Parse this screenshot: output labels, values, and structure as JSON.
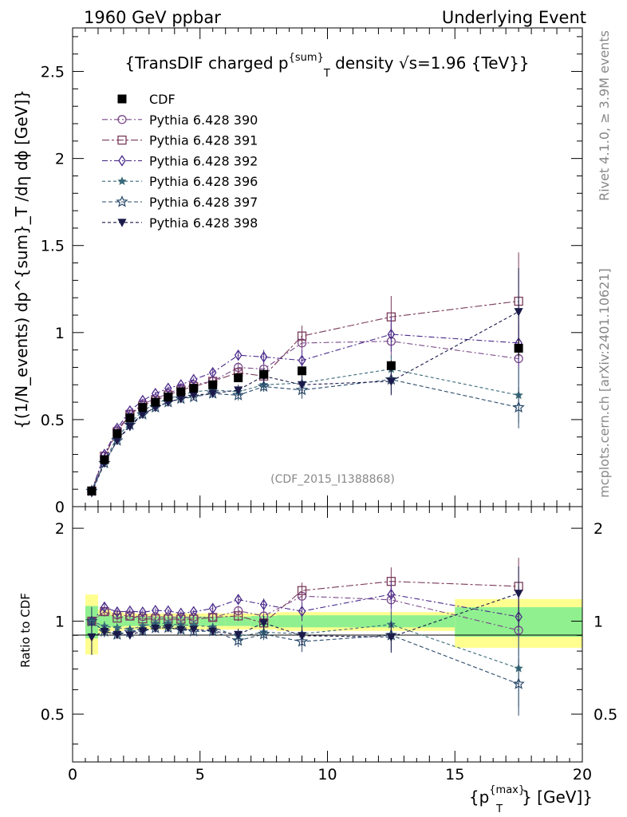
{
  "header": {
    "left": "1960 GeV ppbar",
    "right": "Underlying Event"
  },
  "side": {
    "rivet": "Rivet 4.1.0, ≥ 3.9M events",
    "mcplots": "mcplots.cern.ch [arXiv:2401.10621]"
  },
  "watermark": "(CDF_2015_I1388868)",
  "colors": {
    "band_inner": "#90f090",
    "band_outer": "#ffff90",
    "cdf": "#000000"
  },
  "chart_data": [
    {
      "type": "scatter",
      "panel": "main",
      "title_parts": {
        "pre": "{TransDIF charged p",
        "sup": "{sum}",
        "sub": "T",
        "post": " density √s=1.96 {TeV}}"
      },
      "ylabel": "{(1/N_events) dp^{sum}_T /dη dϕ [GeV]}",
      "xlim": [
        0,
        20
      ],
      "ylim": [
        0,
        2.75
      ],
      "x_ticks": [
        "0",
        "5",
        "10",
        "15",
        "20"
      ],
      "y_ticks": [
        "0",
        "0.5",
        "1",
        "1.5",
        "2",
        "2.5"
      ],
      "x": [
        0.75,
        1.25,
        1.75,
        2.25,
        2.75,
        3.25,
        3.75,
        4.25,
        4.75,
        5.5,
        6.5,
        7.5,
        9.0,
        12.5,
        17.5
      ],
      "series": [
        {
          "name": "CDF",
          "color": "#000000",
          "marker": "filled-square",
          "dash": "",
          "values": [
            0.09,
            0.27,
            0.42,
            0.51,
            0.57,
            0.6,
            0.63,
            0.66,
            0.68,
            0.7,
            0.74,
            0.76,
            0.78,
            0.81,
            0.91
          ],
          "errors": [
            0.01,
            0.01,
            0.01,
            0.01,
            0.01,
            0.01,
            0.01,
            0.01,
            0.01,
            0.01,
            0.02,
            0.02,
            0.02,
            0.03,
            0.05
          ]
        },
        {
          "name": "Pythia 6.428 390",
          "color": "#7a4a8a",
          "marker": "open-circle",
          "dash": "7,3,2,3",
          "values": [
            0.09,
            0.29,
            0.44,
            0.53,
            0.59,
            0.62,
            0.65,
            0.68,
            0.7,
            0.72,
            0.8,
            0.79,
            0.94,
            0.95,
            0.85
          ],
          "errors": [
            0.01,
            0.01,
            0.01,
            0.01,
            0.01,
            0.01,
            0.01,
            0.01,
            0.01,
            0.02,
            0.03,
            0.04,
            0.06,
            0.1,
            0.2
          ]
        },
        {
          "name": "Pythia 6.428 391",
          "color": "#7a3a5a",
          "marker": "open-square",
          "dash": "9,3,3,3",
          "values": [
            0.09,
            0.29,
            0.43,
            0.53,
            0.58,
            0.61,
            0.64,
            0.67,
            0.69,
            0.72,
            0.77,
            0.75,
            0.98,
            1.09,
            1.18
          ],
          "errors": [
            0.01,
            0.01,
            0.01,
            0.01,
            0.01,
            0.01,
            0.01,
            0.01,
            0.01,
            0.02,
            0.03,
            0.04,
            0.06,
            0.12,
            0.28
          ]
        },
        {
          "name": "Pythia 6.428 392",
          "color": "#4a2a8a",
          "marker": "open-diamond",
          "dash": "7,3,2,3",
          "values": [
            0.09,
            0.3,
            0.45,
            0.55,
            0.61,
            0.65,
            0.68,
            0.7,
            0.73,
            0.77,
            0.87,
            0.86,
            0.84,
            0.99,
            0.94
          ],
          "errors": [
            0.01,
            0.01,
            0.01,
            0.01,
            0.01,
            0.01,
            0.01,
            0.01,
            0.01,
            0.02,
            0.03,
            0.04,
            0.06,
            0.1,
            0.24
          ]
        },
        {
          "name": "Pythia 6.428 396",
          "color": "#3a6a7a",
          "marker": "filled-star",
          "dash": "4,3",
          "values": [
            0.09,
            0.26,
            0.4,
            0.48,
            0.55,
            0.59,
            0.62,
            0.64,
            0.66,
            0.67,
            0.66,
            0.7,
            0.71,
            0.79,
            0.64
          ],
          "errors": [
            0.01,
            0.01,
            0.01,
            0.01,
            0.01,
            0.01,
            0.01,
            0.01,
            0.01,
            0.02,
            0.03,
            0.03,
            0.05,
            0.08,
            0.16
          ]
        },
        {
          "name": "Pythia 6.428 397",
          "color": "#2a4a6a",
          "marker": "open-star",
          "dash": "5,3",
          "values": [
            0.09,
            0.25,
            0.38,
            0.47,
            0.53,
            0.57,
            0.6,
            0.62,
            0.63,
            0.65,
            0.64,
            0.69,
            0.67,
            0.73,
            0.57
          ],
          "errors": [
            0.01,
            0.01,
            0.01,
            0.01,
            0.01,
            0.01,
            0.01,
            0.01,
            0.01,
            0.02,
            0.03,
            0.03,
            0.05,
            0.08,
            0.12
          ]
        },
        {
          "name": "Pythia 6.428 398",
          "color": "#1a1a4a",
          "marker": "filled-triangle-down",
          "dash": "4,3",
          "values": [
            0.08,
            0.25,
            0.38,
            0.46,
            0.53,
            0.57,
            0.6,
            0.62,
            0.64,
            0.65,
            0.67,
            0.75,
            0.7,
            0.72,
            1.12
          ],
          "errors": [
            0.01,
            0.01,
            0.01,
            0.01,
            0.01,
            0.01,
            0.01,
            0.01,
            0.01,
            0.02,
            0.03,
            0.04,
            0.05,
            0.08,
            0.25
          ]
        }
      ]
    },
    {
      "type": "scatter",
      "panel": "ratio",
      "ylabel": "Ratio to CDF",
      "xlabel": {
        "pre": "{p",
        "sup": "{max}",
        "sub": "T",
        "post": "} [GeV]}"
      },
      "ylim": [
        0.35,
        2.35
      ],
      "y_ticks": [
        "0.5",
        "1",
        "2"
      ],
      "bins": [
        [
          0.5,
          1.0
        ],
        [
          1.0,
          1.5
        ],
        [
          1.5,
          2.0
        ],
        [
          2.0,
          2.5
        ],
        [
          2.5,
          3.0
        ],
        [
          3.0,
          3.5
        ],
        [
          3.5,
          4.0
        ],
        [
          4.0,
          4.5
        ],
        [
          4.5,
          5.0
        ],
        [
          5.0,
          6.0
        ],
        [
          6.0,
          7.0
        ],
        [
          7.0,
          8.0
        ],
        [
          8.0,
          10.0
        ],
        [
          10.0,
          15.0
        ],
        [
          15.0,
          20.0
        ]
      ],
      "band_inner": [
        0.12,
        0.05,
        0.04,
        0.035,
        0.035,
        0.035,
        0.035,
        0.035,
        0.035,
        0.035,
        0.035,
        0.04,
        0.045,
        0.045,
        0.11
      ],
      "band_outer": [
        0.22,
        0.09,
        0.07,
        0.06,
        0.06,
        0.06,
        0.06,
        0.06,
        0.06,
        0.06,
        0.06,
        0.06,
        0.07,
        0.07,
        0.18
      ]
    }
  ]
}
